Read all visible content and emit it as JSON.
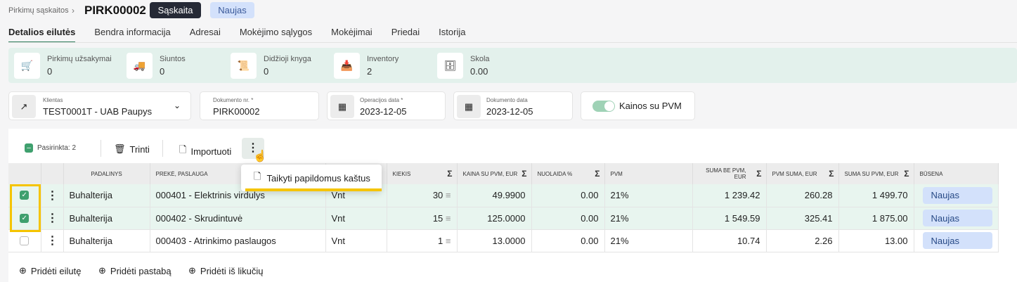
{
  "breadcrumb": {
    "parent": "Pirkimų sąskaitos",
    "title": "PIRK00002",
    "type_badge": "Sąskaita",
    "status_badge": "Naujas"
  },
  "tabs": [
    "Detalios eilutės",
    "Bendra informacija",
    "Adresai",
    "Mokėjimo sąlygos",
    "Mokėjimai",
    "Priedai",
    "Istorija"
  ],
  "stats": [
    {
      "label": "Pirkimų užsakymai",
      "value": "0",
      "icon": "cart-icon"
    },
    {
      "label": "Siuntos",
      "value": "0",
      "icon": "truck-icon"
    },
    {
      "label": "Didžioji knyga",
      "value": "0",
      "icon": "ledger-icon"
    },
    {
      "label": "Inventory",
      "value": "2",
      "icon": "inbox-icon"
    },
    {
      "label": "Skola",
      "value": "0.00",
      "icon": "register-icon"
    }
  ],
  "fields": {
    "client_label": "Klientas",
    "client_value": "TEST0001T - UAB Paupys",
    "doc_no_label": "Dokumento nr. *",
    "doc_no_value": "PIRK00002",
    "op_date_label": "Operacijos data *",
    "op_date_value": "2023-12-05",
    "doc_date_label": "Dokumento data",
    "doc_date_value": "2023-12-05",
    "vat_toggle_label": "Kainos su PVM",
    "vat_toggle_on": true
  },
  "toolbar": {
    "selected": "Pasirinkta: 2",
    "delete": "Trinti",
    "import": "Importuoti"
  },
  "context_menu": {
    "item": "Taikyti papildomus kaštus"
  },
  "table": {
    "headers": [
      "PADALINYS",
      "PREKĖ, PASLAUGA",
      "",
      "KIEKIS",
      "KAINA SU PVM, EUR",
      "NUOLAIDA %",
      "PVM",
      "SUMA BE PVM, EUR",
      "PVM SUMA, EUR",
      "SUMA SU PVM, EUR",
      "BŪSENA"
    ],
    "rows": [
      {
        "checked": true,
        "padalinys": "Buhalterija",
        "preke": "000401 - Elektrinis virdulys",
        "unit": "Vnt",
        "kiekis": "30",
        "kaina": "49.9900",
        "nuolaida": "0.00",
        "pvm": "21%",
        "suma_be": "1 239.42",
        "pvm_suma": "260.28",
        "suma_su": "1 499.70",
        "busena": "Naujas"
      },
      {
        "checked": true,
        "padalinys": "Buhalterija",
        "preke": "000402 - Skrudintuvė",
        "unit": "Vnt",
        "kiekis": "15",
        "kaina": "125.0000",
        "nuolaida": "0.00",
        "pvm": "21%",
        "suma_be": "1 549.59",
        "pvm_suma": "325.41",
        "suma_su": "1 875.00",
        "busena": "Naujas"
      },
      {
        "checked": false,
        "padalinys": "Buhalterija",
        "preke": "000403 - Atrinkimo paslaugos",
        "unit": "Vnt",
        "kiekis": "1",
        "kaina": "13.0000",
        "nuolaida": "0.00",
        "pvm": "21%",
        "suma_be": "10.74",
        "pvm_suma": "2.26",
        "suma_su": "13.00",
        "busena": "Naujas"
      }
    ]
  },
  "footer": {
    "add_line": "Pridėti eilutę",
    "add_note": "Pridėti pastabą",
    "add_from_stock": "Pridėti iš likučių"
  }
}
